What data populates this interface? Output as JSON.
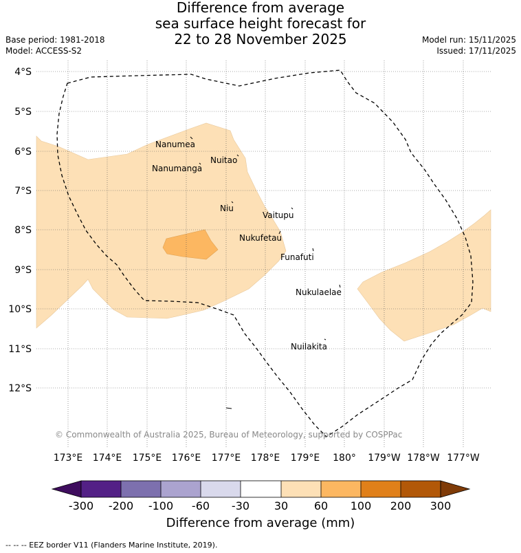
{
  "title": {
    "line1": "Difference from average",
    "line2": "sea surface height forecast for",
    "line3": "22 to 28 November 2025"
  },
  "meta": {
    "base_period": "Base period: 1981-2018",
    "model": "Model: ACCESS-S2",
    "model_run": "Model run: 15/11/2025",
    "issued": "Issued: 17/11/2025"
  },
  "map": {
    "lat_labels": [
      "4°S",
      "5°S",
      "6°S",
      "7°S",
      "8°S",
      "9°S",
      "10°S",
      "11°S",
      "12°S"
    ],
    "lon_labels": [
      "173°E",
      "174°E",
      "175°E",
      "176°E",
      "177°E",
      "178°E",
      "179°E",
      "180°",
      "179°W",
      "178°W",
      "177°W"
    ],
    "islands": [
      "Nanumea",
      "Nuitao",
      "Nanumanga",
      "Niu",
      "Vaitupu",
      "Nukufetau",
      "Funafuti",
      "Nukulaelae",
      "Nuilakita"
    ],
    "copyright": "© Commonwealth of Australia 2025, Bureau of Meteorology, supported by COSPPac",
    "colors": {
      "anomaly_30_60": "#fde0b6",
      "anomaly_60_100": "#fcb761",
      "eez_border": "#000000",
      "grid": "#555555"
    }
  },
  "colorbar": {
    "ticks": [
      "-300",
      "-200",
      "-100",
      "-60",
      "-30",
      "30",
      "60",
      "100",
      "200",
      "300"
    ],
    "colors": [
      "#3f0d5e",
      "#532086",
      "#7d70ae",
      "#aba3cf",
      "#d9d9ec",
      "#ffffff",
      "#fde0b6",
      "#fcb761",
      "#e0801a",
      "#b25808",
      "#7f3b08"
    ],
    "title": "Difference from average (mm)"
  },
  "footnote": "--  --  -- EEZ border V11 (Flanders Marine Institute, 2019)."
}
